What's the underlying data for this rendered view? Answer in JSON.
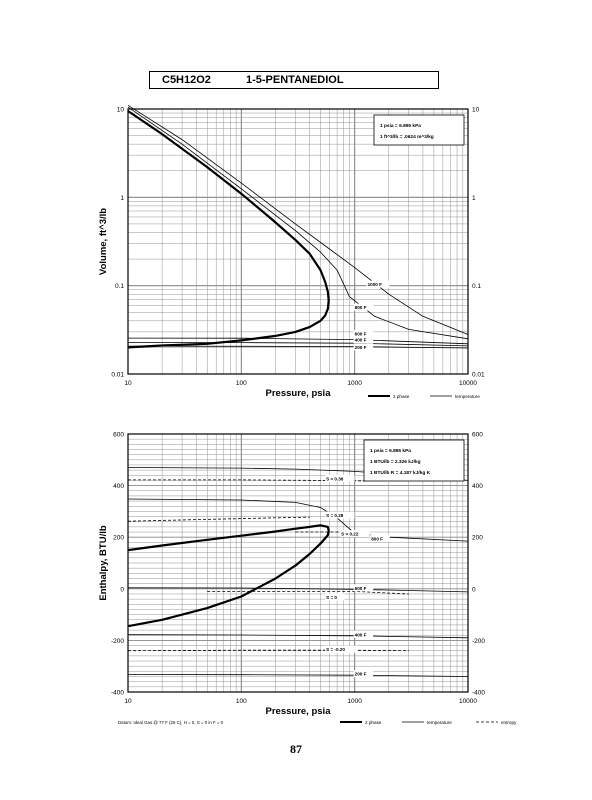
{
  "header": {
    "formula": "C5H12O2",
    "name": "1-5-PENTANEDIOL"
  },
  "page_number": "87",
  "chart_data": [
    {
      "type": "line",
      "id": "volume",
      "x_scale": "log",
      "y_scale": "log",
      "xlim": [
        10,
        10000
      ],
      "ylim": [
        0.01,
        10
      ],
      "xlabel": "Pressure,  psia",
      "ylabel": "Volume, ft^3/lb",
      "x_ticks": [
        "10",
        "100",
        "1000",
        "10000"
      ],
      "y_ticks_left": [
        "0.01",
        "0.1",
        "1",
        "10"
      ],
      "y_ticks_right": [
        "0.01",
        "0.1",
        "1",
        "10"
      ],
      "grid": true,
      "conversion_box": [
        "1 psia = 6.895 kPa",
        "1 ft^3/lb = .0624 m^3/kg"
      ],
      "legend": [
        {
          "label": "2 phase",
          "style": "thick"
        },
        {
          "label": "temperature",
          "style": "thin"
        }
      ],
      "series": [
        {
          "role": "two-phase",
          "x": [
            10,
            20,
            50,
            100,
            200,
            300,
            400,
            500,
            550,
            580,
            590,
            580,
            550,
            500,
            400,
            300,
            200,
            100,
            50,
            20,
            10
          ],
          "y": [
            9.5,
            5.2,
            2.2,
            1.1,
            0.52,
            0.33,
            0.23,
            0.15,
            0.11,
            0.085,
            0.068,
            0.055,
            0.046,
            0.04,
            0.034,
            0.03,
            0.027,
            0.024,
            0.022,
            0.021,
            0.02
          ]
        },
        {
          "name": "1000 F",
          "x": [
            10,
            30,
            100,
            300,
            600,
            1000,
            2000,
            4000,
            10000
          ],
          "y": [
            11,
            4.5,
            1.45,
            0.5,
            0.26,
            0.16,
            0.08,
            0.045,
            0.028
          ]
        },
        {
          "name": "800 F",
          "x": [
            10,
            30,
            100,
            300,
            500,
            700,
            900,
            1500,
            3000,
            10000
          ],
          "y": [
            10.5,
            4,
            1.25,
            0.42,
            0.24,
            0.15,
            0.075,
            0.045,
            0.032,
            0.025
          ]
        },
        {
          "name": "600 F",
          "x": [
            10,
            100,
            1000,
            10000
          ],
          "y": [
            0.0255,
            0.0254,
            0.0245,
            0.022
          ]
        },
        {
          "name": "400 F",
          "x": [
            10,
            100,
            1000,
            10000
          ],
          "y": [
            0.0228,
            0.0227,
            0.0223,
            0.0208
          ]
        },
        {
          "name": "200 F",
          "x": [
            10,
            100,
            1000,
            10000
          ],
          "y": [
            0.0207,
            0.0206,
            0.0204,
            0.0197
          ]
        }
      ],
      "annotations": [
        {
          "text": "1000 F",
          "x": 1300,
          "y": 0.1
        },
        {
          "text": "800 F",
          "x": 1000,
          "y": 0.055
        },
        {
          "text": "600 F",
          "x": 1000,
          "y": 0.0275
        },
        {
          "text": "400 F",
          "x": 1000,
          "y": 0.0235
        },
        {
          "text": "200 F",
          "x": 1000,
          "y": 0.0195
        }
      ]
    },
    {
      "type": "line",
      "id": "enthalpy",
      "x_scale": "log",
      "y_scale": "linear",
      "xlim": [
        10,
        10000
      ],
      "ylim": [
        -400,
        600
      ],
      "xlabel": "Pressure,  psia",
      "ylabel": "Enthalpy, BTU/lb",
      "x_ticks": [
        "10",
        "100",
        "1000",
        "10000"
      ],
      "y_ticks_left": [
        "-400",
        "-200",
        "0",
        "200",
        "400",
        "600"
      ],
      "y_ticks_right": [
        "-400",
        "-200",
        "0",
        "200",
        "400",
        "600"
      ],
      "grid": true,
      "conversion_box": [
        "1 psia = 6.895 kPa",
        "1 BTU/lb = 2.326 kJ/kg",
        "1 BTU/lb R = 4.187 kJ/kg K"
      ],
      "legend": [
        {
          "label": "2 phase",
          "style": "thick"
        },
        {
          "label": "temperature",
          "style": "thin"
        },
        {
          "label": "entropy",
          "style": "dashed"
        }
      ],
      "datum": "Datum: Ideal Gas @ 77 F (25 C),  H = 0,  S = 0 in F = 0",
      "series": [
        {
          "role": "two-phase",
          "x": [
            10,
            20,
            50,
            100,
            200,
            300,
            400,
            500,
            580,
            590,
            580,
            500,
            400,
            300,
            200,
            100,
            50,
            20,
            10
          ],
          "y": [
            150,
            168,
            190,
            206,
            222,
            233,
            240,
            246,
            240,
            225,
            208,
            175,
            135,
            90,
            40,
            -30,
            -75,
            -120,
            -145
          ]
        },
        {
          "name": "1000 F",
          "x": [
            10,
            100,
            300,
            1000,
            3000,
            10000
          ],
          "y": [
            470,
            468,
            464,
            455,
            440,
            420
          ]
        },
        {
          "name": "800 F",
          "x": [
            10,
            100,
            300,
            500,
            700,
            1000,
            2000,
            10000
          ],
          "y": [
            348,
            344,
            335,
            315,
            275,
            215,
            200,
            185
          ]
        },
        {
          "name": "600 F",
          "x": [
            10,
            100,
            1000,
            10000
          ],
          "y": [
            4,
            3,
            -2,
            -12
          ]
        },
        {
          "name": "400 F",
          "x": [
            10,
            100,
            1000,
            10000
          ],
          "y": [
            -178,
            -179,
            -182,
            -190
          ]
        },
        {
          "name": "200 F",
          "x": [
            10,
            100,
            1000,
            10000
          ],
          "y": [
            -332,
            -333,
            -335,
            -340
          ]
        },
        {
          "role": "entropy",
          "name": "S = 0.36",
          "x": [
            10,
            100,
            500,
            1300
          ],
          "y": [
            422,
            422,
            420,
            418
          ]
        },
        {
          "role": "entropy",
          "name": "S = 0.28",
          "x": [
            10,
            100,
            400
          ],
          "y": [
            262,
            272,
            278
          ]
        },
        {
          "role": "entropy",
          "name": "S = 0.22",
          "x": [
            300,
            700,
            1000
          ],
          "y": [
            220,
            220,
            218
          ]
        },
        {
          "role": "entropy",
          "name": "S = 0",
          "x": [
            50,
            300,
            1000,
            3000
          ],
          "y": [
            -10,
            -10,
            -10,
            -20
          ]
        },
        {
          "role": "entropy",
          "name": "S = -0.20",
          "x": [
            10,
            100,
            1000,
            3000
          ],
          "y": [
            -240,
            -238,
            -238,
            -240
          ]
        }
      ],
      "annotations": [
        {
          "text": "1000 F",
          "x": 1400,
          "y": 422
        },
        {
          "text": "800 F",
          "x": 1400,
          "y": 190
        },
        {
          "text": "600 F",
          "x": 1000,
          "y": -2
        },
        {
          "text": "400 F",
          "x": 1000,
          "y": -182
        },
        {
          "text": "200 F",
          "x": 1000,
          "y": -335
        },
        {
          "text": "S = 0.36",
          "x": 560,
          "y": 422
        },
        {
          "text": "S = 0.28",
          "x": 560,
          "y": 280
        },
        {
          "text": "S = 0.22",
          "x": 760,
          "y": 208
        },
        {
          "text": "S = 0",
          "x": 560,
          "y": -38
        },
        {
          "text": "S = -0.20",
          "x": 560,
          "y": -240
        }
      ]
    }
  ]
}
